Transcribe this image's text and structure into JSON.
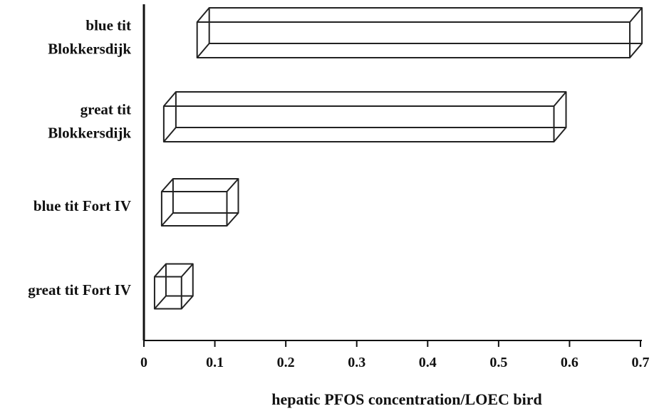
{
  "chart_data": {
    "type": "bar",
    "orientation": "horizontal",
    "style": "3d-box",
    "categories": [
      [
        "blue tit",
        "Blokkersdijk"
      ],
      [
        "great tit",
        "Blokkersdijk"
      ],
      [
        "blue tit Fort IV"
      ],
      [
        "great tit Fort IV"
      ]
    ],
    "ranges": [
      [
        0.075,
        0.685
      ],
      [
        0.028,
        0.578
      ],
      [
        0.025,
        0.117
      ],
      [
        0.015,
        0.053
      ]
    ],
    "xlabel": "hepatic PFOS concentration/LOEC bird",
    "xlim": [
      0,
      0.7
    ],
    "xticks": [
      "0",
      "0.1",
      "0.2",
      "0.3",
      "0.4",
      "0.5",
      "0.6",
      "0.7"
    ],
    "grid": false,
    "legend": "none",
    "colors": {
      "stroke": "#222222",
      "background": "#ffffff"
    }
  }
}
